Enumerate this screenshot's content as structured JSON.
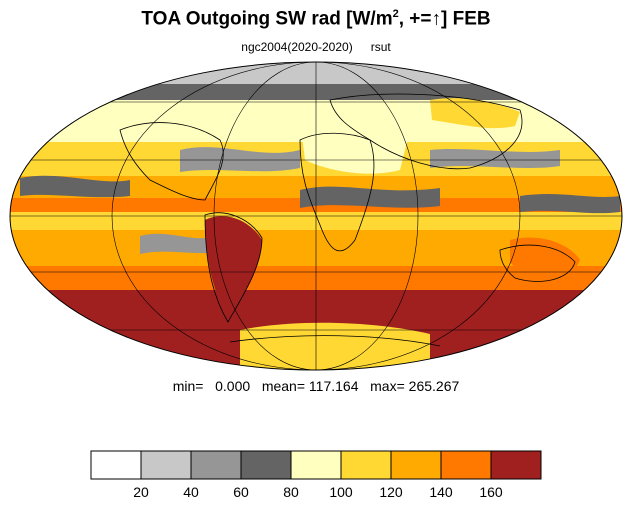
{
  "title": {
    "main": "TOA Outgoing SW rad [W/m",
    "sup": "2",
    "rest": ", +=",
    "arrow": "↑",
    "month": "] FEB"
  },
  "subtitle": {
    "case": "ngc2004(2020-2020)",
    "variable": "rsut"
  },
  "stats": {
    "text": "min=   0.000   mean= 117.164   max= 265.267"
  },
  "colorbar": {
    "colors": [
      "#ffffff",
      "#c8c8c8",
      "#969696",
      "#646464",
      "#ffffc0",
      "#ffd834",
      "#ffaa00",
      "#ff7800",
      "#a02020"
    ],
    "labels": [
      "20",
      "40",
      "60",
      "80",
      "100",
      "120",
      "140",
      "160"
    ]
  }
}
